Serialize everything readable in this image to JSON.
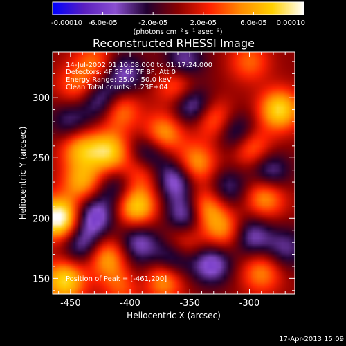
{
  "chart_data": {
    "type": "heatmap",
    "title": "Reconstructed RHESSI Image",
    "xlabel": "Heliocentric X (arcsec)",
    "ylabel": "Heliocentric Y (arcsec)",
    "xlim": [
      -465,
      -262
    ],
    "ylim": [
      137,
      338
    ],
    "x_ticks": [
      {
        "value": -450,
        "label": "-450"
      },
      {
        "value": -400,
        "label": "-400"
      },
      {
        "value": -350,
        "label": "-350"
      },
      {
        "value": -300,
        "label": "-300"
      }
    ],
    "y_ticks": [
      {
        "value": 150,
        "label": "150"
      },
      {
        "value": 200,
        "label": "200"
      },
      {
        "value": 250,
        "label": "250"
      },
      {
        "value": 300,
        "label": "300"
      }
    ],
    "colorbar": {
      "range": [
        -0.0001,
        0.0001
      ],
      "units": "(photons cm⁻² s⁻¹ asec⁻²)",
      "ticks": [
        {
          "value": -0.0001,
          "label": "-0.00010"
        },
        {
          "value": -6e-05,
          "label": "-6.0e-05"
        },
        {
          "value": -2e-05,
          "label": "-2.0e-05"
        },
        {
          "value": 2e-05,
          "label": "2.0e-05"
        },
        {
          "value": 6e-05,
          "label": "6.0e-05"
        },
        {
          "value": 0.0001,
          "label": "0.00010"
        }
      ],
      "colors": [
        "#0000ff",
        "#5a1fbf",
        "#8a4fd0",
        "#200030",
        "#8b0000",
        "#ff2000",
        "#ff8c00",
        "#ffd000",
        "#ffffff"
      ]
    },
    "annotations": [
      "14-Jul-2002 01:10:08.000 to 01:17:24.000",
      "Detectors: 4F 5F 6F 7F 8F, Att 0",
      "Energy Range: 25.0 - 50.0 keV",
      "Clean     Total counts: 1.23E+04"
    ],
    "peak_label": "Position of Peak = [-461,200]",
    "peak": {
      "x": -461,
      "y": 200
    },
    "sources": [
      {
        "x": -460,
        "y": 200,
        "w": 0.00011
      },
      {
        "x": -455,
        "y": 148,
        "w": 8e-05
      },
      {
        "x": -440,
        "y": 230,
        "w": 6e-05
      },
      {
        "x": -442,
        "y": 258,
        "w": 6e-05
      },
      {
        "x": -418,
        "y": 255,
        "w": 7.5e-05
      },
      {
        "x": -410,
        "y": 290,
        "w": 6e-05
      },
      {
        "x": -395,
        "y": 210,
        "w": 8e-05
      },
      {
        "x": -390,
        "y": 240,
        "w": 5e-05
      },
      {
        "x": -372,
        "y": 270,
        "w": 6e-05
      },
      {
        "x": -372,
        "y": 150,
        "w": 7e-05
      },
      {
        "x": -360,
        "y": 310,
        "w": 5e-05
      },
      {
        "x": -345,
        "y": 245,
        "w": 6e-05
      },
      {
        "x": -338,
        "y": 208,
        "w": 7e-05
      },
      {
        "x": -322,
        "y": 190,
        "w": 5e-05
      },
      {
        "x": -330,
        "y": 282,
        "w": 5e-05
      },
      {
        "x": -300,
        "y": 260,
        "w": 6e-05
      },
      {
        "x": -275,
        "y": 290,
        "w": 8e-05
      },
      {
        "x": -287,
        "y": 218,
        "w": 6e-05
      },
      {
        "x": -290,
        "y": 155,
        "w": 5e-05
      },
      {
        "x": -420,
        "y": 168,
        "w": 6e-05
      },
      {
        "x": -405,
        "y": 145,
        "w": 5e-05
      },
      {
        "x": -445,
        "y": 310,
        "w": 4e-05
      },
      {
        "x": -430,
        "y": 330,
        "w": 4e-05
      },
      {
        "x": -300,
        "y": 330,
        "w": 4e-05
      },
      {
        "x": -355,
        "y": 180,
        "w": 4e-05
      },
      {
        "x": -430,
        "y": 202,
        "w": -6e-05
      },
      {
        "x": -440,
        "y": 178,
        "w": -5e-05
      },
      {
        "x": -423,
        "y": 297,
        "w": -6e-05
      },
      {
        "x": -385,
        "y": 252,
        "w": -6e-05
      },
      {
        "x": -393,
        "y": 180,
        "w": -5e-05
      },
      {
        "x": -362,
        "y": 232,
        "w": -6e-05
      },
      {
        "x": -352,
        "y": 203,
        "w": -7e-05
      },
      {
        "x": -365,
        "y": 165,
        "w": -6e-05
      },
      {
        "x": -332,
        "y": 162,
        "w": -6e-05
      },
      {
        "x": -348,
        "y": 294,
        "w": -6e-05
      },
      {
        "x": -310,
        "y": 270,
        "w": -6e-05
      },
      {
        "x": -298,
        "y": 185,
        "w": -5e-05
      },
      {
        "x": -283,
        "y": 238,
        "w": -5e-05
      },
      {
        "x": -405,
        "y": 320,
        "w": -5e-05
      },
      {
        "x": -355,
        "y": 330,
        "w": -5e-05
      },
      {
        "x": -412,
        "y": 225,
        "w": -4e-05
      },
      {
        "x": -318,
        "y": 225,
        "w": -4e-05
      },
      {
        "x": -450,
        "y": 280,
        "w": -4e-05
      },
      {
        "x": -270,
        "y": 175,
        "w": -4e-05
      },
      {
        "x": -395,
        "y": 150,
        "w": -3e-05
      }
    ]
  },
  "footer": {
    "timestamp": "17-Apr-2013 15:09"
  }
}
